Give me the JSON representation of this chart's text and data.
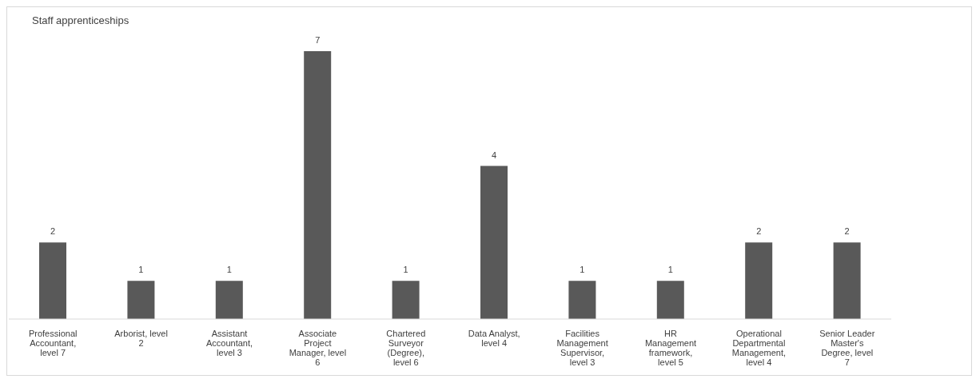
{
  "chart_data": {
    "type": "bar",
    "title": "Staff apprenticeships",
    "categories": [
      "Professional Accountant, level 7",
      "Arborist, level 2",
      "Assistant Accountant, level 3",
      "Associate Project Manager, level 6",
      "Chartered Surveyor (Degree), level 6",
      "Data Analyst, level 4",
      "Facilities Management Supervisor, level 3",
      "HR Management framework, level 5",
      "Operational Departmental Management, level 4",
      "Senior Leader Master's Degree, level 7"
    ],
    "values": [
      2,
      1,
      1,
      7,
      1,
      4,
      1,
      1,
      2,
      2
    ],
    "color": "#595959",
    "data_labels": true
  }
}
